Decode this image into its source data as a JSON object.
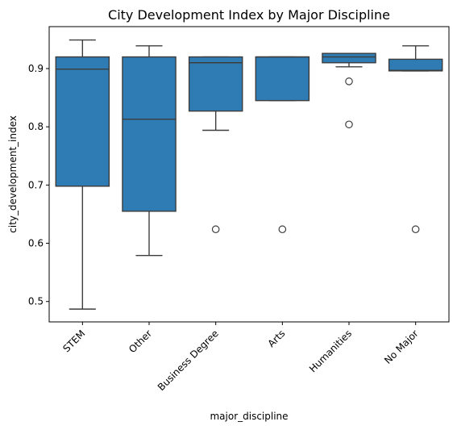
{
  "chart_data": {
    "type": "box",
    "title": "City Development Index by Major Discipline",
    "xlabel": "major_discipline",
    "ylabel": "city_development_index",
    "ylim": [
      0.465,
      0.972
    ],
    "yticks": [
      0.5,
      0.6,
      0.7,
      0.8,
      0.9
    ],
    "ytick_labels": [
      "0.5",
      "0.6",
      "0.7",
      "0.8",
      "0.9"
    ],
    "grid": false,
    "box_color": "#2f7bb3",
    "line_color": "#3d3d3d",
    "categories": [
      "STEM",
      "Other",
      "Business Degree",
      "Arts",
      "Humanities",
      "No Major"
    ],
    "boxes": [
      {
        "category": "STEM",
        "whisker_low": 0.487,
        "q1": 0.698,
        "median": 0.899,
        "q3": 0.92,
        "whisker_high": 0.949,
        "outliers": []
      },
      {
        "category": "Other",
        "whisker_low": 0.579,
        "q1": 0.655,
        "median": 0.813,
        "q3": 0.92,
        "whisker_high": 0.939,
        "outliers": []
      },
      {
        "category": "Business Degree",
        "whisker_low": 0.794,
        "q1": 0.827,
        "median": 0.91,
        "q3": 0.92,
        "whisker_high": 0.92,
        "outliers": [
          0.624
        ]
      },
      {
        "category": "Arts",
        "whisker_low": 0.845,
        "q1": 0.845,
        "median": 0.92,
        "q3": 0.92,
        "whisker_high": 0.92,
        "outliers": [
          0.624
        ]
      },
      {
        "category": "Humanities",
        "whisker_low": 0.903,
        "q1": 0.91,
        "median": 0.92,
        "q3": 0.926,
        "whisker_high": 0.926,
        "outliers": [
          0.878,
          0.804
        ]
      },
      {
        "category": "No Major",
        "whisker_low": 0.896,
        "q1": 0.896,
        "median": 0.897,
        "q3": 0.916,
        "whisker_high": 0.939,
        "outliers": [
          0.624
        ]
      }
    ]
  }
}
